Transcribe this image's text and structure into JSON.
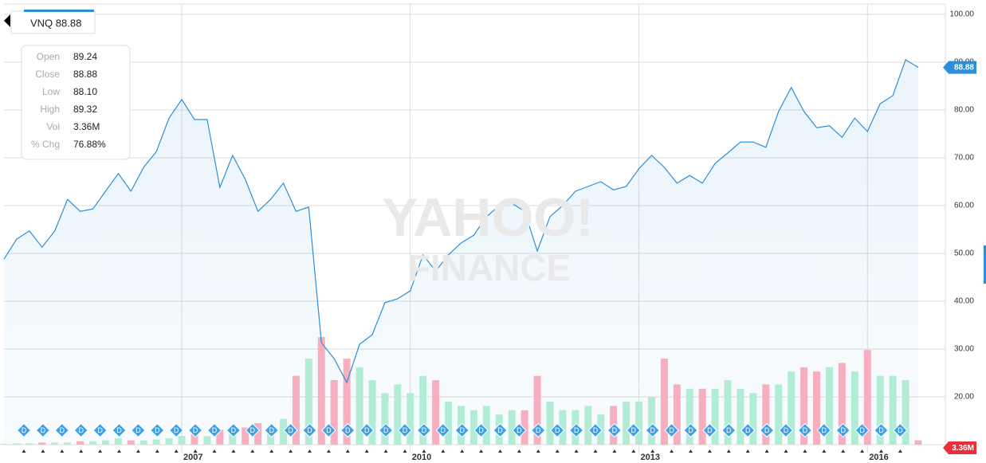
{
  "ticker_label": "VNQ 88.88",
  "quote": {
    "rows": [
      {
        "label": "Open",
        "value": "89.24"
      },
      {
        "label": "Close",
        "value": "88.88"
      },
      {
        "label": "Low",
        "value": "88.10"
      },
      {
        "label": "High",
        "value": "89.32"
      },
      {
        "label": "Vol",
        "value": "3.36M"
      },
      {
        "label": "% Chg",
        "value": "76.88%"
      }
    ]
  },
  "chart_data": {
    "type": "line",
    "categories": [
      null,
      null,
      null,
      null,
      null,
      null,
      null,
      null,
      null,
      null,
      null,
      null,
      null,
      null,
      "2007",
      null,
      null,
      null,
      null,
      null,
      null,
      null,
      null,
      null,
      null,
      null,
      null,
      null,
      null,
      null,
      null,
      null,
      "2010",
      null,
      null,
      null,
      null,
      null,
      null,
      null,
      null,
      null,
      null,
      null,
      null,
      null,
      null,
      null,
      null,
      null,
      "2013",
      null,
      null,
      null,
      null,
      null,
      null,
      null,
      null,
      null,
      null,
      null,
      null,
      null,
      null,
      null,
      null,
      null,
      "2016",
      null,
      null,
      null,
      null
    ],
    "series": [
      {
        "color": "#2b8fd9",
        "values": [
          48.8,
          53,
          54.7,
          51.3,
          54.7,
          61.3,
          58.8,
          59.3,
          63,
          66.7,
          63,
          68,
          71.3,
          78.3,
          82.2,
          78,
          78,
          63.8,
          70.5,
          65.5,
          58.8,
          61.3,
          64.7,
          58.8,
          59.7,
          31.3,
          28,
          23,
          31,
          33,
          39.7,
          40.5,
          42.2,
          49.7,
          46.3,
          49.7,
          52.2,
          53.8,
          57.7,
          60,
          60.5,
          58.8,
          50.5,
          57.7,
          60,
          63,
          64,
          65,
          63.3,
          64,
          67.7,
          70.5,
          68,
          64.7,
          66.3,
          64.7,
          68.8,
          71,
          73.3,
          73.3,
          72.2,
          79.7,
          84.7,
          79.7,
          76.3,
          76.7,
          74.3,
          78.3,
          75.5,
          81.3,
          83,
          90.5,
          88.9
        ]
      }
    ],
    "volume": {
      "axis": "y2",
      "up_color": "#b3ecd5",
      "down_color": "#f7aebf",
      "values": [
        0.02,
        0.03,
        0.03,
        0.05,
        0.05,
        0.05,
        0.08,
        0.08,
        0.1,
        0.15,
        0.1,
        0.1,
        0.12,
        0.15,
        0.2,
        0.25,
        0.2,
        0.35,
        0.3,
        0.4,
        0.5,
        0.4,
        0.6,
        1.6,
        2.0,
        2.5,
        1.5,
        2.0,
        1.8,
        1.5,
        1.2,
        1.4,
        1.2,
        1.6,
        1.5,
        1.0,
        0.9,
        0.8,
        0.9,
        0.7,
        0.8,
        0.8,
        1.6,
        1.0,
        0.8,
        0.8,
        0.9,
        0.7,
        0.9,
        1.0,
        1.0,
        1.1,
        2.0,
        1.4,
        1.3,
        1.3,
        1.3,
        1.5,
        1.3,
        1.2,
        1.4,
        1.4,
        1.7,
        1.8,
        1.7,
        1.8,
        1.9,
        1.7,
        2.2,
        1.6,
        1.6,
        1.5,
        0.1
      ]
    },
    "ylim": [
      10,
      100
    ],
    "yticks": [
      {
        "value": 20,
        "label": "20.00"
      },
      {
        "value": 30,
        "label": "30.00"
      },
      {
        "value": 40,
        "label": "40.00"
      },
      {
        "value": 50,
        "label": "50.00"
      },
      {
        "value": 60,
        "label": "60.00"
      },
      {
        "value": 70,
        "label": "70.00"
      },
      {
        "value": 80,
        "label": "80.00"
      },
      {
        "value": 90,
        "label": "90.00"
      },
      {
        "value": 100,
        "label": "100.00"
      }
    ],
    "y2lim": [
      0,
      10
    ],
    "grid": true,
    "price_tag": "88.88",
    "volume_tag": "3.36M",
    "dividends": [
      "D",
      "D",
      "D",
      "D",
      "D",
      "D",
      "D",
      "D",
      "D",
      "D",
      "D",
      "D",
      "D",
      "D",
      "D",
      "D",
      "D",
      "D",
      "D",
      "D",
      "D",
      "D",
      "D",
      "D",
      "D",
      "D",
      "D",
      "D",
      "D",
      "D",
      "D",
      "D",
      "D",
      "D",
      "D",
      "D",
      "D",
      "D",
      "D",
      "D",
      "D",
      "D",
      "D",
      "D",
      "D",
      "D",
      "D"
    ],
    "watermark": [
      "YAHOO!",
      "FINANCE"
    ]
  }
}
